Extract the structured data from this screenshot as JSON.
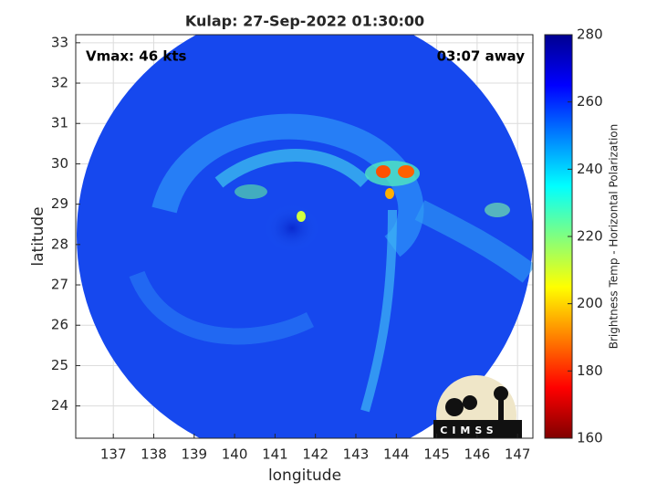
{
  "chart_data": {
    "type": "image",
    "title": "Kulap: 27-Sep-2022 01:30:00",
    "annotations": [
      "Vmax: 46 kts",
      "03:07 away"
    ],
    "xlabel": "longitude",
    "ylabel": "latitude",
    "xlim": [
      136.07,
      147.38
    ],
    "xticks": [
      137,
      138,
      139,
      140,
      141,
      142,
      143,
      144,
      145,
      146,
      147
    ],
    "ylim": [
      23.2,
      33.2
    ],
    "yticks": [
      24,
      25,
      26,
      27,
      28,
      29,
      30,
      31,
      32,
      33
    ],
    "grid": true,
    "colorbar": {
      "label": "Brightness Temp - Horizontal Polarization",
      "lim": [
        160,
        280
      ],
      "ticks": [
        160,
        180,
        200,
        220,
        240,
        260,
        280
      ],
      "colormap": [
        "#800000",
        "#ff0000",
        "#ff8000",
        "#ffff00",
        "#80ff80",
        "#00ffff",
        "#0080ff",
        "#0000ff",
        "#000090"
      ]
    },
    "logo_text": "CIMSS"
  }
}
